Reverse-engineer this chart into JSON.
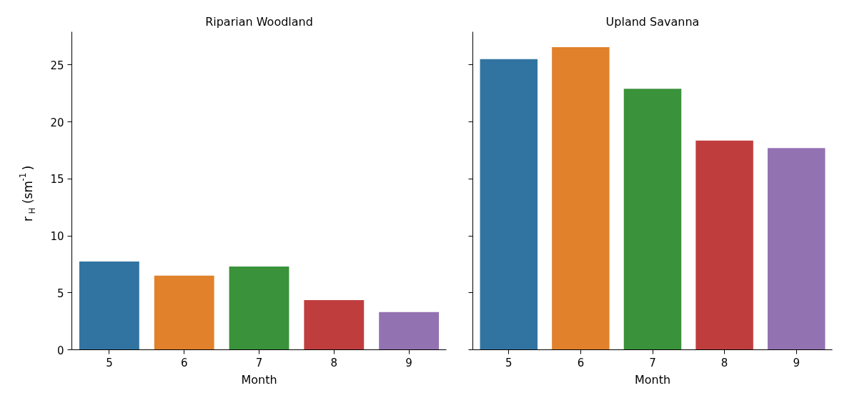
{
  "chart_data": [
    {
      "type": "bar",
      "title": "Riparian Woodland",
      "xlabel": "Month",
      "ylabel": "r$_{H}$ (sm$^{-1}$)",
      "categories": [
        "5",
        "6",
        "7",
        "8",
        "9"
      ],
      "values": [
        7.75,
        6.5,
        7.3,
        4.35,
        3.3
      ],
      "colors": [
        "#3274a1",
        "#e1812c",
        "#3a923a",
        "#c03d3e",
        "#9372b2"
      ],
      "ylim": [
        0,
        27.9
      ],
      "yticks": [
        0,
        5,
        10,
        15,
        20,
        25
      ]
    },
    {
      "type": "bar",
      "title": "Upland Savanna",
      "xlabel": "Month",
      "categories": [
        "5",
        "6",
        "7",
        "8",
        "9"
      ],
      "values": [
        25.5,
        26.55,
        22.9,
        18.35,
        17.7
      ],
      "colors": [
        "#3274a1",
        "#e1812c",
        "#3a923a",
        "#c03d3e",
        "#9372b2"
      ],
      "ylim": [
        0,
        27.9
      ],
      "yticks": [
        0,
        5,
        10,
        15,
        20,
        25
      ],
      "tick_labels": "x"
    }
  ]
}
